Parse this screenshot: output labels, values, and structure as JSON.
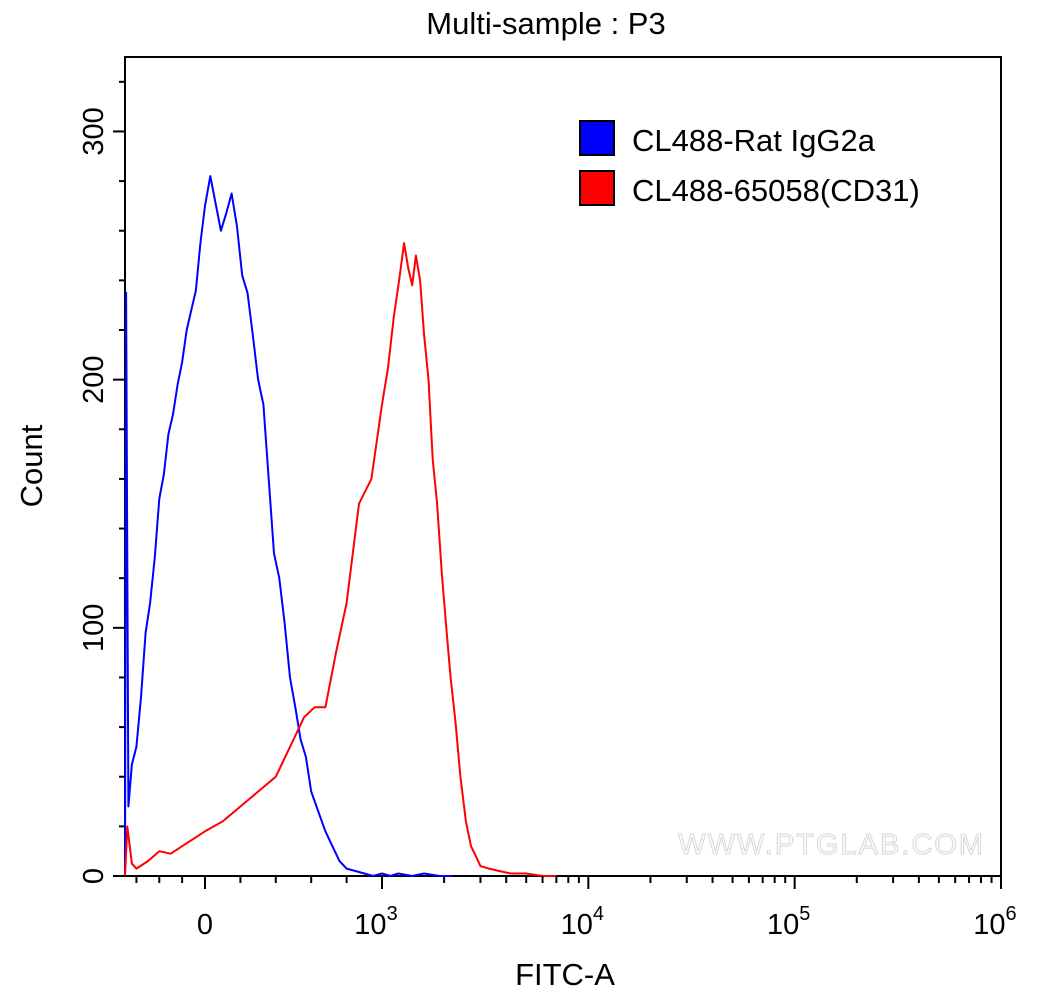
{
  "chart_data": {
    "type": "line",
    "title": "Multi-sample : P3",
    "xlabel": "FITC-A",
    "ylabel": "Count",
    "x_scale": "biexponential",
    "xlim": [
      -700,
      1000000
    ],
    "ylim": [
      0,
      330
    ],
    "x_ticks": [
      {
        "value": 0,
        "base": "0",
        "exp": ""
      },
      {
        "value": 1000,
        "base": "10",
        "exp": "3"
      },
      {
        "value": 10000,
        "base": "10",
        "exp": "4"
      },
      {
        "value": 100000,
        "base": "10",
        "exp": "5"
      },
      {
        "value": 1000000,
        "base": "10",
        "exp": "6"
      }
    ],
    "y_ticks": [
      0,
      100,
      200,
      300
    ],
    "legend_position": "top-right",
    "grid": false,
    "watermark": "WWW.PTGLAB.COM",
    "series": [
      {
        "name": "CL488-Rat IgG2a",
        "color": "#0000ff",
        "x": [
          -700,
          -690,
          -670,
          -640,
          -600,
          -560,
          -520,
          -480,
          -440,
          -400,
          -360,
          -320,
          -280,
          -240,
          -200,
          -160,
          -120,
          -80,
          -40,
          0,
          30,
          60,
          90,
          120,
          150,
          180,
          210,
          240,
          270,
          300,
          330,
          360,
          390,
          420,
          450,
          480,
          510,
          540,
          570,
          600,
          640,
          680,
          720,
          760,
          800,
          850,
          900,
          950,
          1000,
          1100,
          1200,
          1400,
          1600,
          1900,
          2200
        ],
        "values": [
          0,
          235,
          28,
          45,
          52,
          72,
          98,
          110,
          128,
          152,
          162,
          178,
          186,
          198,
          207,
          220,
          228,
          236,
          255,
          270,
          282,
          271,
          260,
          267,
          275,
          262,
          242,
          235,
          218,
          200,
          190,
          160,
          130,
          120,
          102,
          80,
          68,
          55,
          48,
          34,
          26,
          18,
          12,
          6,
          3,
          2,
          1,
          0,
          1,
          0,
          1,
          0,
          1,
          0,
          0
        ]
      },
      {
        "name": "CL488-65058(CD31)",
        "color": "#ff0000",
        "x": [
          -700,
          -680,
          -640,
          -600,
          -500,
          -400,
          -300,
          -200,
          -100,
          0,
          100,
          200,
          300,
          400,
          500,
          560,
          620,
          680,
          740,
          800,
          870,
          940,
          1000,
          1070,
          1140,
          1210,
          1280,
          1340,
          1400,
          1460,
          1530,
          1600,
          1680,
          1760,
          1850,
          1950,
          2050,
          2150,
          2270,
          2400,
          2550,
          2700,
          2850,
          3000,
          3300,
          3700,
          4200,
          5000,
          6000,
          7000
        ],
        "values": [
          0,
          20,
          5,
          3,
          6,
          10,
          9,
          12,
          15,
          18,
          22,
          28,
          34,
          40,
          55,
          64,
          68,
          68,
          90,
          110,
          150,
          160,
          190,
          205,
          225,
          240,
          255,
          245,
          238,
          250,
          240,
          218,
          200,
          168,
          150,
          122,
          100,
          80,
          62,
          40,
          22,
          12,
          8,
          4,
          3,
          2,
          1,
          1,
          0,
          0
        ]
      }
    ]
  }
}
